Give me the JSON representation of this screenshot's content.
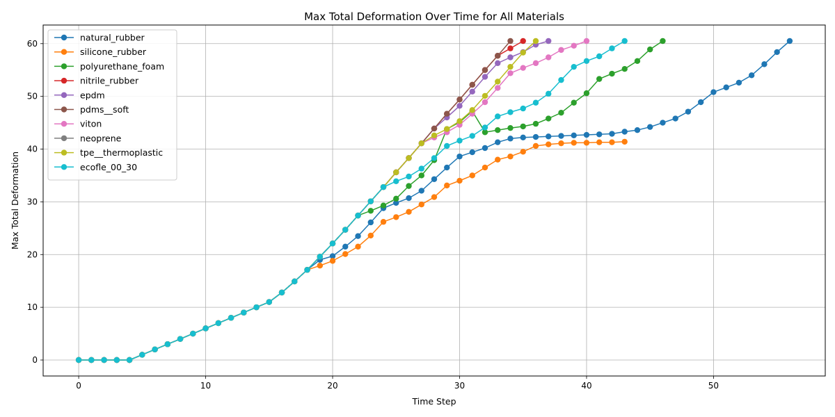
{
  "chart_data": {
    "type": "line",
    "title": "Max Total Deformation Over Time for All Materials",
    "xlabel": "Time Step",
    "ylabel": "Max Total Deformation",
    "xlim": [
      -2.8,
      58.8
    ],
    "ylim": [
      -3.03,
      63.53
    ],
    "xticks": [
      0,
      10,
      20,
      30,
      40,
      50
    ],
    "yticks": [
      0,
      10,
      20,
      30,
      40,
      50,
      60
    ],
    "grid": true,
    "legend_position": "top-left",
    "marker": "circle",
    "series": [
      {
        "name": "natural_rubber",
        "color": "#1f77b4",
        "x": [
          0,
          1,
          2,
          3,
          4,
          5,
          6,
          7,
          8,
          9,
          10,
          11,
          12,
          13,
          14,
          15,
          16,
          17,
          18,
          19,
          20,
          21,
          22,
          23,
          24,
          25,
          26,
          27,
          28,
          29,
          30,
          31,
          32,
          33,
          34,
          35,
          36,
          37,
          38,
          39,
          40,
          41,
          42,
          43,
          44,
          45,
          46,
          47,
          48,
          49,
          50,
          51,
          52,
          53,
          54,
          55,
          56
        ],
        "y": [
          0,
          0,
          0,
          0,
          0,
          1,
          2,
          3,
          4,
          5,
          6,
          7,
          8,
          9,
          10,
          11,
          12.8,
          14.9,
          17.1,
          19.0,
          19.7,
          21.5,
          23.5,
          26.1,
          28.8,
          29.8,
          30.7,
          32.1,
          34.3,
          36.5,
          38.6,
          39.4,
          40.2,
          41.3,
          42.0,
          42.2,
          42.3,
          42.4,
          42.5,
          42.6,
          42.7,
          42.8,
          42.9,
          43.3,
          43.6,
          44.2,
          45.0,
          45.8,
          47.1,
          48.9,
          50.8,
          51.7,
          52.6,
          54.0,
          56.1,
          58.4,
          60.5
        ]
      },
      {
        "name": "silicone_rubber",
        "color": "#ff7f0e",
        "x": [
          0,
          1,
          2,
          3,
          4,
          5,
          6,
          7,
          8,
          9,
          10,
          11,
          12,
          13,
          14,
          15,
          16,
          17,
          18,
          19,
          20,
          21,
          22,
          23,
          24,
          25,
          26,
          27,
          28,
          29,
          30,
          31,
          32,
          33,
          34,
          35,
          36,
          37,
          38,
          39,
          40,
          41,
          42,
          43
        ],
        "y": [
          0,
          0,
          0,
          0,
          0,
          1,
          2,
          3,
          4,
          5,
          6,
          7,
          8,
          9,
          10,
          11,
          12.8,
          14.9,
          17.1,
          17.9,
          18.8,
          20.1,
          21.5,
          23.6,
          26.2,
          27.1,
          28.1,
          29.5,
          30.9,
          33.1,
          34.0,
          35.0,
          36.5,
          38.0,
          38.6,
          39.5,
          40.6,
          40.9,
          41.1,
          41.2,
          41.2,
          41.3,
          41.3,
          41.4
        ]
      },
      {
        "name": "polyurethane_foam",
        "color": "#2ca02c",
        "x": [
          0,
          1,
          2,
          3,
          4,
          5,
          6,
          7,
          8,
          9,
          10,
          11,
          12,
          13,
          14,
          15,
          16,
          17,
          18,
          19,
          20,
          21,
          22,
          23,
          24,
          25,
          26,
          27,
          28,
          29,
          30,
          31,
          32,
          33,
          34,
          35,
          36,
          37,
          38,
          39,
          40,
          41,
          42,
          43,
          44,
          45,
          46
        ],
        "y": [
          0,
          0,
          0,
          0,
          0,
          1,
          2,
          3,
          4,
          5,
          6,
          7,
          8,
          9,
          10,
          11,
          12.8,
          14.9,
          17.1,
          19.6,
          22.1,
          24.7,
          27.4,
          28.3,
          29.3,
          30.6,
          33.0,
          35.0,
          37.9,
          43.8,
          45.1,
          47.2,
          43.2,
          43.6,
          44.0,
          44.3,
          44.8,
          45.8,
          46.9,
          48.8,
          50.6,
          53.3,
          54.3,
          55.2,
          56.7,
          58.9,
          60.5
        ]
      },
      {
        "name": "nitrile_rubber",
        "color": "#d62728",
        "x": [
          0,
          1,
          2,
          3,
          4,
          5,
          6,
          7,
          8,
          9,
          10,
          11,
          12,
          13,
          14,
          15,
          16,
          17,
          18,
          19,
          20,
          21,
          22,
          23,
          24,
          25,
          26,
          27,
          28,
          29,
          30,
          31,
          32,
          33,
          34,
          35
        ],
        "y": [
          0,
          0,
          0,
          0,
          0,
          1,
          2,
          3,
          4,
          5,
          6,
          7,
          8,
          9,
          10,
          11,
          12.8,
          14.9,
          17.1,
          19.6,
          22.1,
          24.7,
          27.4,
          30.1,
          32.8,
          35.6,
          38.3,
          41.1,
          43.9,
          46.7,
          49.4,
          52.2,
          55.0,
          57.7,
          59.1,
          60.5
        ]
      },
      {
        "name": "epdm",
        "color": "#9467bd",
        "x": [
          0,
          1,
          2,
          3,
          4,
          5,
          6,
          7,
          8,
          9,
          10,
          11,
          12,
          13,
          14,
          15,
          16,
          17,
          18,
          19,
          20,
          21,
          22,
          23,
          24,
          25,
          26,
          27,
          28,
          29,
          30,
          31,
          32,
          33,
          34,
          35,
          36,
          37
        ],
        "y": [
          0,
          0,
          0,
          0,
          0,
          1,
          2,
          3,
          4,
          5,
          6,
          7,
          8,
          9,
          10,
          11,
          12.8,
          14.9,
          17.1,
          19.6,
          22.1,
          24.7,
          27.4,
          30.1,
          32.8,
          35.6,
          38.3,
          41.1,
          43.9,
          46.0,
          48.2,
          50.9,
          53.7,
          56.3,
          57.4,
          58.4,
          59.8,
          60.5
        ]
      },
      {
        "name": "pdms__soft",
        "color": "#8c564b",
        "x": [
          0,
          1,
          2,
          3,
          4,
          5,
          6,
          7,
          8,
          9,
          10,
          11,
          12,
          13,
          14,
          15,
          16,
          17,
          18,
          19,
          20,
          21,
          22,
          23,
          24,
          25,
          26,
          27,
          28,
          29,
          30,
          31,
          32,
          33,
          34
        ],
        "y": [
          0,
          0,
          0,
          0,
          0,
          1,
          2,
          3,
          4,
          5,
          6,
          7,
          8,
          9,
          10,
          11,
          12.8,
          14.9,
          17.1,
          19.6,
          22.1,
          24.7,
          27.4,
          30.1,
          32.8,
          35.6,
          38.3,
          41.1,
          43.9,
          46.7,
          49.4,
          52.2,
          55.0,
          57.7,
          60.5
        ]
      },
      {
        "name": "viton",
        "color": "#e377c2",
        "x": [
          0,
          1,
          2,
          3,
          4,
          5,
          6,
          7,
          8,
          9,
          10,
          11,
          12,
          13,
          14,
          15,
          16,
          17,
          18,
          19,
          20,
          21,
          22,
          23,
          24,
          25,
          26,
          27,
          28,
          29,
          30,
          31,
          32,
          33,
          34,
          35,
          36,
          37,
          38,
          39,
          40
        ],
        "y": [
          0,
          0,
          0,
          0,
          0,
          1,
          2,
          3,
          4,
          5,
          6,
          7,
          8,
          9,
          10,
          11,
          12.8,
          14.9,
          17.1,
          19.6,
          22.1,
          24.7,
          27.4,
          30.1,
          32.8,
          35.6,
          38.3,
          41.1,
          42.2,
          43.2,
          44.6,
          46.7,
          48.9,
          51.6,
          54.4,
          55.4,
          56.3,
          57.4,
          58.8,
          59.6,
          60.5
        ]
      },
      {
        "name": "neoprene",
        "color": "#7f7f7f",
        "x": [
          0,
          1,
          2,
          3,
          4,
          5,
          6,
          7,
          8,
          9,
          10,
          11,
          12,
          13,
          14,
          15,
          16,
          17,
          18,
          19,
          20,
          21,
          22,
          23,
          24,
          25,
          26,
          27
        ],
        "y": [
          0,
          0,
          0,
          0,
          0,
          1,
          2,
          3,
          4,
          5,
          6,
          7,
          8,
          9,
          10,
          11,
          12.8,
          14.9,
          17.1,
          19.6,
          22.1,
          24.7,
          27.4,
          30.1,
          32.8,
          35.6,
          38.3,
          41.1
        ]
      },
      {
        "name": "tpe__thermoplastic",
        "color": "#bcbd22",
        "x": [
          0,
          1,
          2,
          3,
          4,
          5,
          6,
          7,
          8,
          9,
          10,
          11,
          12,
          13,
          14,
          15,
          16,
          17,
          18,
          19,
          20,
          21,
          22,
          23,
          24,
          25,
          26,
          27,
          28,
          29,
          30,
          31,
          32,
          33,
          34,
          35,
          36
        ],
        "y": [
          0,
          0,
          0,
          0,
          0,
          1,
          2,
          3,
          4,
          5,
          6,
          7,
          8,
          9,
          10,
          11,
          12.8,
          14.9,
          17.1,
          19.6,
          22.1,
          24.7,
          27.4,
          30.1,
          32.8,
          35.6,
          38.3,
          41.1,
          42.6,
          43.8,
          45.3,
          47.4,
          50.1,
          52.8,
          55.6,
          58.3,
          60.5
        ]
      },
      {
        "name": "ecofle_00_30",
        "color": "#17becf",
        "x": [
          0,
          1,
          2,
          3,
          4,
          5,
          6,
          7,
          8,
          9,
          10,
          11,
          12,
          13,
          14,
          15,
          16,
          17,
          18,
          19,
          20,
          21,
          22,
          23,
          24,
          25,
          26,
          27,
          28,
          29,
          30,
          31,
          32,
          33,
          34,
          35,
          36,
          37,
          38,
          39,
          40,
          41,
          42,
          43
        ],
        "y": [
          0,
          0,
          0,
          0,
          0,
          1,
          2,
          3,
          4,
          5,
          6,
          7,
          8,
          9,
          10,
          11,
          12.8,
          14.9,
          17.1,
          19.6,
          22.1,
          24.7,
          27.4,
          30.1,
          32.8,
          33.9,
          34.8,
          36.3,
          38.3,
          40.6,
          41.6,
          42.5,
          44.1,
          46.2,
          47.0,
          47.7,
          48.8,
          50.5,
          53.1,
          55.6,
          56.7,
          57.6,
          59.1,
          60.5
        ]
      }
    ]
  }
}
